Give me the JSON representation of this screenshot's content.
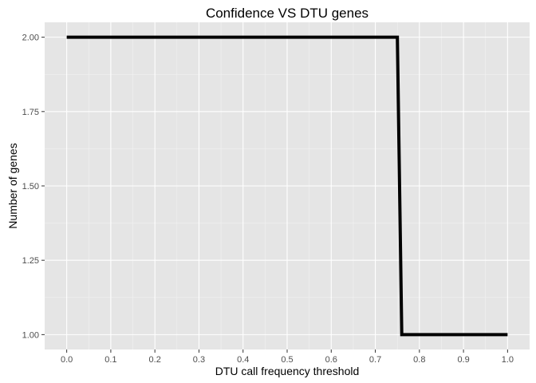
{
  "chart_data": {
    "type": "line",
    "title": "Confidence VS DTU genes",
    "xlabel": "DTU call frequency threshold",
    "ylabel": "Number of genes",
    "xlim": [
      -0.05,
      1.05
    ],
    "ylim": [
      0.95,
      2.05
    ],
    "x_ticks": [
      "0.0",
      "0.1",
      "0.2",
      "0.3",
      "0.4",
      "0.5",
      "0.6",
      "0.7",
      "0.8",
      "0.9",
      "1.0"
    ],
    "y_ticks": [
      "1.00",
      "1.25",
      "1.50",
      "1.75",
      "2.00"
    ],
    "grid": true,
    "legend": "none",
    "series": [
      {
        "x": [
          0.0,
          0.75,
          0.76,
          1.0
        ],
        "y": [
          2.0,
          2.0,
          1.0,
          1.0
        ],
        "color": "#000000"
      }
    ],
    "colors": {
      "panel_bg": "#e5e5e5",
      "grid": "#ffffff",
      "line": "#000000",
      "tick_text": "#4d4d4d"
    }
  }
}
